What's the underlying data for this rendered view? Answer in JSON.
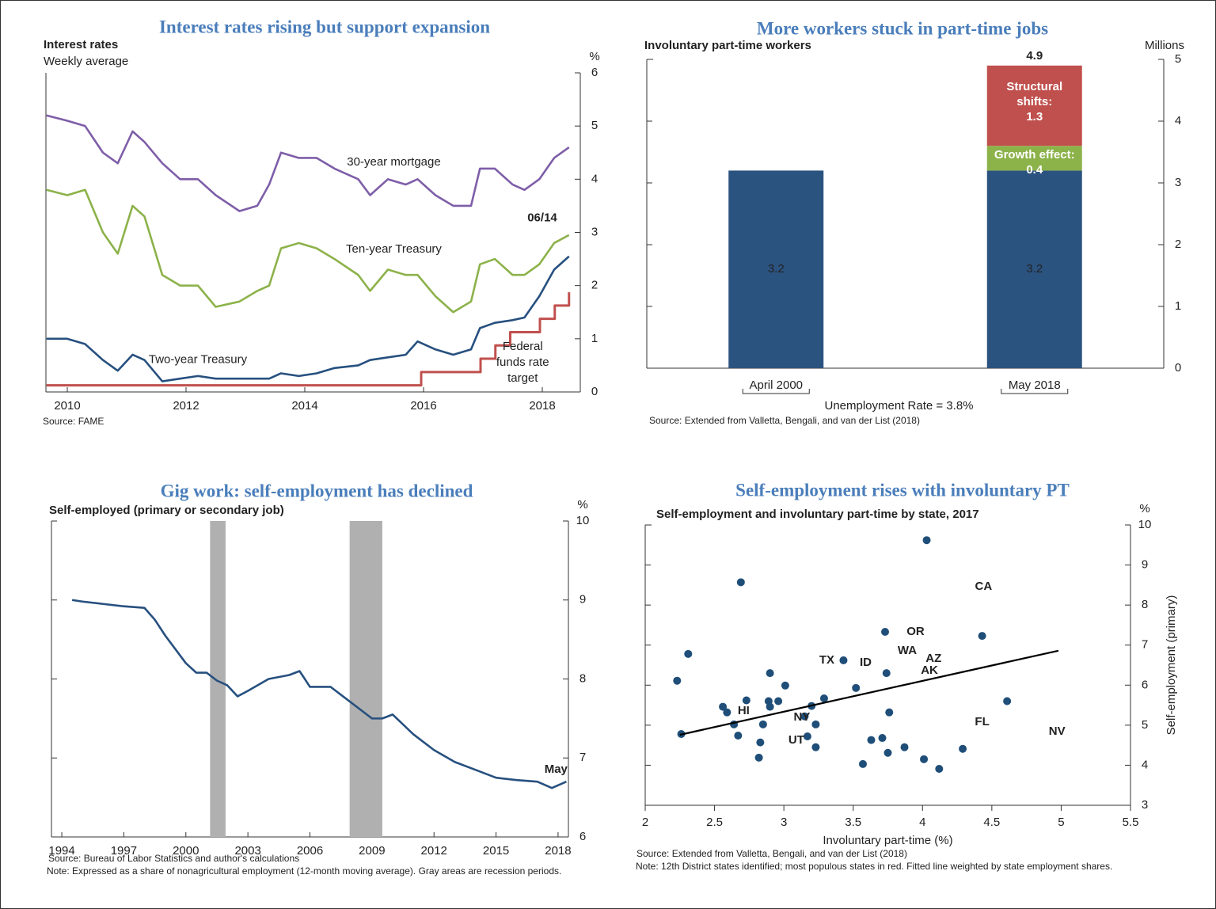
{
  "chart_data": [
    {
      "type": "line",
      "title": "Interest rates rising but support expansion",
      "subtitle": "Interest rates",
      "subtitle2": "Weekly average",
      "y_unit": "%",
      "source": "Source: FAME",
      "annotation": "06/14",
      "x": [
        2009.65,
        2010.0,
        2010.3,
        2010.6,
        2010.85,
        2011.1,
        2011.3,
        2011.6,
        2011.9,
        2012.2,
        2012.5,
        2012.9,
        2013.2,
        2013.4,
        2013.6,
        2013.9,
        2014.2,
        2014.5,
        2014.9,
        2015.1,
        2015.4,
        2015.7,
        2015.9,
        2016.2,
        2016.5,
        2016.8,
        2016.95,
        2017.2,
        2017.5,
        2017.7,
        2017.95,
        2018.2,
        2018.45
      ],
      "series": [
        {
          "name": "30-year mortgage",
          "color": "#7e5ea8",
          "values": [
            5.2,
            5.1,
            5.0,
            4.5,
            4.3,
            4.9,
            4.7,
            4.3,
            4.0,
            4.0,
            3.7,
            3.4,
            3.5,
            3.9,
            4.5,
            4.4,
            4.4,
            4.2,
            4.0,
            3.7,
            4.0,
            3.9,
            4.0,
            3.7,
            3.5,
            3.5,
            4.2,
            4.2,
            3.9,
            3.8,
            4.0,
            4.4,
            4.6
          ]
        },
        {
          "name": "Ten-year Treasury",
          "color": "#8cb24a",
          "values": [
            3.8,
            3.7,
            3.8,
            3.0,
            2.6,
            3.5,
            3.3,
            2.2,
            2.0,
            2.0,
            1.6,
            1.7,
            1.9,
            2.0,
            2.7,
            2.8,
            2.7,
            2.5,
            2.2,
            1.9,
            2.3,
            2.2,
            2.2,
            1.8,
            1.5,
            1.7,
            2.4,
            2.5,
            2.2,
            2.2,
            2.4,
            2.8,
            2.95
          ]
        },
        {
          "name": "Two-year Treasury",
          "color": "#27507f",
          "values": [
            1.0,
            1.0,
            0.9,
            0.6,
            0.4,
            0.7,
            0.6,
            0.2,
            0.25,
            0.3,
            0.25,
            0.25,
            0.25,
            0.25,
            0.35,
            0.3,
            0.35,
            0.45,
            0.5,
            0.6,
            0.65,
            0.7,
            0.95,
            0.8,
            0.7,
            0.8,
            1.2,
            1.3,
            1.35,
            1.4,
            1.8,
            2.3,
            2.55
          ]
        },
        {
          "name": "Federal funds rate target",
          "color": "#c0504d",
          "step": true,
          "x": [
            2009.65,
            2015.96,
            2016.96,
            2017.21,
            2017.46,
            2017.96,
            2018.21,
            2018.45
          ],
          "values": [
            0.125,
            0.375,
            0.625,
            0.875,
            1.125,
            1.375,
            1.625,
            1.875
          ]
        }
      ],
      "xlim": [
        2009.64,
        2018.64
      ],
      "xticks": [
        2010,
        2012,
        2014,
        2016,
        2018
      ],
      "ylim": [
        0,
        6
      ],
      "yticks": [
        0,
        1,
        2,
        3,
        4,
        5,
        6
      ],
      "y_axis": "right"
    },
    {
      "type": "bar",
      "title": "More workers stuck in part-time jobs",
      "subtitle": "Involuntary  part-time workers",
      "y_unit": "Millions",
      "categories": [
        "April 2000",
        "May 2018"
      ],
      "series": [
        {
          "color": "#2b5380",
          "values": [
            3.2,
            3.2
          ]
        },
        {
          "name": "Growth effect:",
          "color": "#8cb24a",
          "values": [
            null,
            0.4
          ]
        },
        {
          "name": "Structural shifts:",
          "color": "#c0504d",
          "values": [
            null,
            1.3
          ]
        }
      ],
      "total_labels": [
        null,
        "4.9"
      ],
      "footer": "Unemployment Rate = 3.8%",
      "source": "Source: Extended from Valletta, Bengali, and van der List (2018)",
      "stacked": true,
      "ylim": [
        0,
        5
      ],
      "yticks": [
        0,
        1,
        2,
        3,
        4,
        5
      ],
      "y_axis": "right"
    },
    {
      "type": "line",
      "title": "Gig work: self-employment has declined",
      "subtitle": "Self-employed (primary or secondary job)",
      "y_unit": "%",
      "annotation": "May",
      "source": "Source: Bureau of Labor Statistics and author's calculations",
      "note": "Note: Expressed as a share of nonagricultural employment (12-month moving average). Gray areas are recession periods.",
      "x": [
        1994.5,
        1995,
        1996,
        1997,
        1998,
        1998.5,
        1999,
        2000,
        2000.5,
        2001,
        2001.5,
        2002,
        2002.5,
        2003,
        2004,
        2005,
        2005.5,
        2006,
        2007,
        2008,
        2009,
        2009.5,
        2010,
        2011,
        2012,
        2013,
        2014,
        2015,
        2016,
        2017,
        2017.7,
        2018.4
      ],
      "series": [
        {
          "color": "#27507f",
          "values": [
            9.0,
            8.98,
            8.95,
            8.92,
            8.9,
            8.75,
            8.55,
            8.2,
            8.08,
            8.08,
            7.98,
            7.92,
            7.78,
            7.85,
            8.0,
            8.05,
            8.1,
            7.9,
            7.9,
            7.7,
            7.5,
            7.5,
            7.55,
            7.3,
            7.1,
            6.95,
            6.85,
            6.75,
            6.72,
            6.7,
            6.62,
            6.7
          ]
        }
      ],
      "recessions": [
        [
          2001.17,
          2001.92
        ],
        [
          2007.92,
          2009.5
        ]
      ],
      "recession_color": "#b0b0b0",
      "xlim": [
        1993.5,
        2018.5
      ],
      "xticks": [
        1994,
        1997,
        2000,
        2003,
        2006,
        2009,
        2012,
        2015,
        2018
      ],
      "ylim": [
        6,
        10
      ],
      "yticks": [
        6,
        7,
        8,
        9,
        10
      ],
      "y_axis": "right"
    },
    {
      "type": "scatter",
      "title": "Self-employment rises with involuntary PT",
      "subtitle": "Self-employment and involuntary  part-time by state, 2017",
      "y_unit": "%",
      "xlabel": "Involuntary part-time (%)",
      "ylabel": "Self-employment (primary)",
      "source": "Source: Extended from Valletta, Bengali, and van der List (2018)",
      "note": "Note: 12th District states identified; most populous states in red. Fitted line weighted by state employment shares.",
      "color": "#1f4e79",
      "x": [
        4.03,
        2.69,
        2.31,
        2.23,
        3.73,
        4.43,
        3.43,
        2.9,
        3.74,
        3.01,
        3.52,
        3.29,
        2.73,
        2.89,
        2.96,
        4.61,
        2.56,
        3.2,
        2.59,
        2.9,
        3.76,
        3.15,
        3.23,
        2.64,
        2.85,
        2.26,
        2.67,
        3.17,
        3.63,
        3.71,
        2.83,
        3.23,
        3.87,
        4.29,
        3.75,
        2.82,
        4.01,
        3.57,
        4.12
      ],
      "values": [
        9.62,
        8.57,
        6.78,
        6.11,
        7.33,
        7.23,
        6.62,
        6.3,
        6.3,
        5.99,
        5.93,
        5.67,
        5.62,
        5.6,
        5.6,
        5.6,
        5.46,
        5.48,
        5.32,
        5.46,
        5.32,
        5.22,
        5.02,
        5.02,
        5.02,
        4.78,
        4.74,
        4.72,
        4.63,
        4.68,
        4.57,
        4.45,
        4.45,
        4.41,
        4.31,
        4.19,
        4.15,
        4.03,
        3.91
      ],
      "fit_line": {
        "x": [
          2.25,
          4.98
        ],
        "values": [
          4.76,
          6.86
        ],
        "color": "#000000"
      },
      "labels": [
        {
          "text": "CA",
          "color": "#c62d2d"
        },
        {
          "text": "OR",
          "color": "#4a6fa5"
        },
        {
          "text": "WA",
          "color": "#4a6fa5"
        },
        {
          "text": "AZ",
          "color": "#4a6fa5"
        },
        {
          "text": "AK",
          "color": "#4a6fa5"
        },
        {
          "text": "TX",
          "color": "#c62d2d"
        },
        {
          "text": "ID",
          "color": "#4a6fa5"
        },
        {
          "text": "HI",
          "color": "#4a6fa5"
        },
        {
          "text": "NY",
          "color": "#c62d2d"
        },
        {
          "text": "UT",
          "color": "#4a6fa5"
        },
        {
          "text": "FL",
          "color": "#c62d2d"
        },
        {
          "text": "NV",
          "color": "#4a6fa5"
        }
      ],
      "xlim": [
        2,
        5.5
      ],
      "xticks": [
        2,
        2.5,
        3,
        3.5,
        4,
        4.5,
        5,
        5.5
      ],
      "ylim": [
        3,
        10
      ],
      "yticks": [
        3,
        4,
        5,
        6,
        7,
        8,
        9,
        10
      ],
      "y_axis": "right"
    }
  ]
}
